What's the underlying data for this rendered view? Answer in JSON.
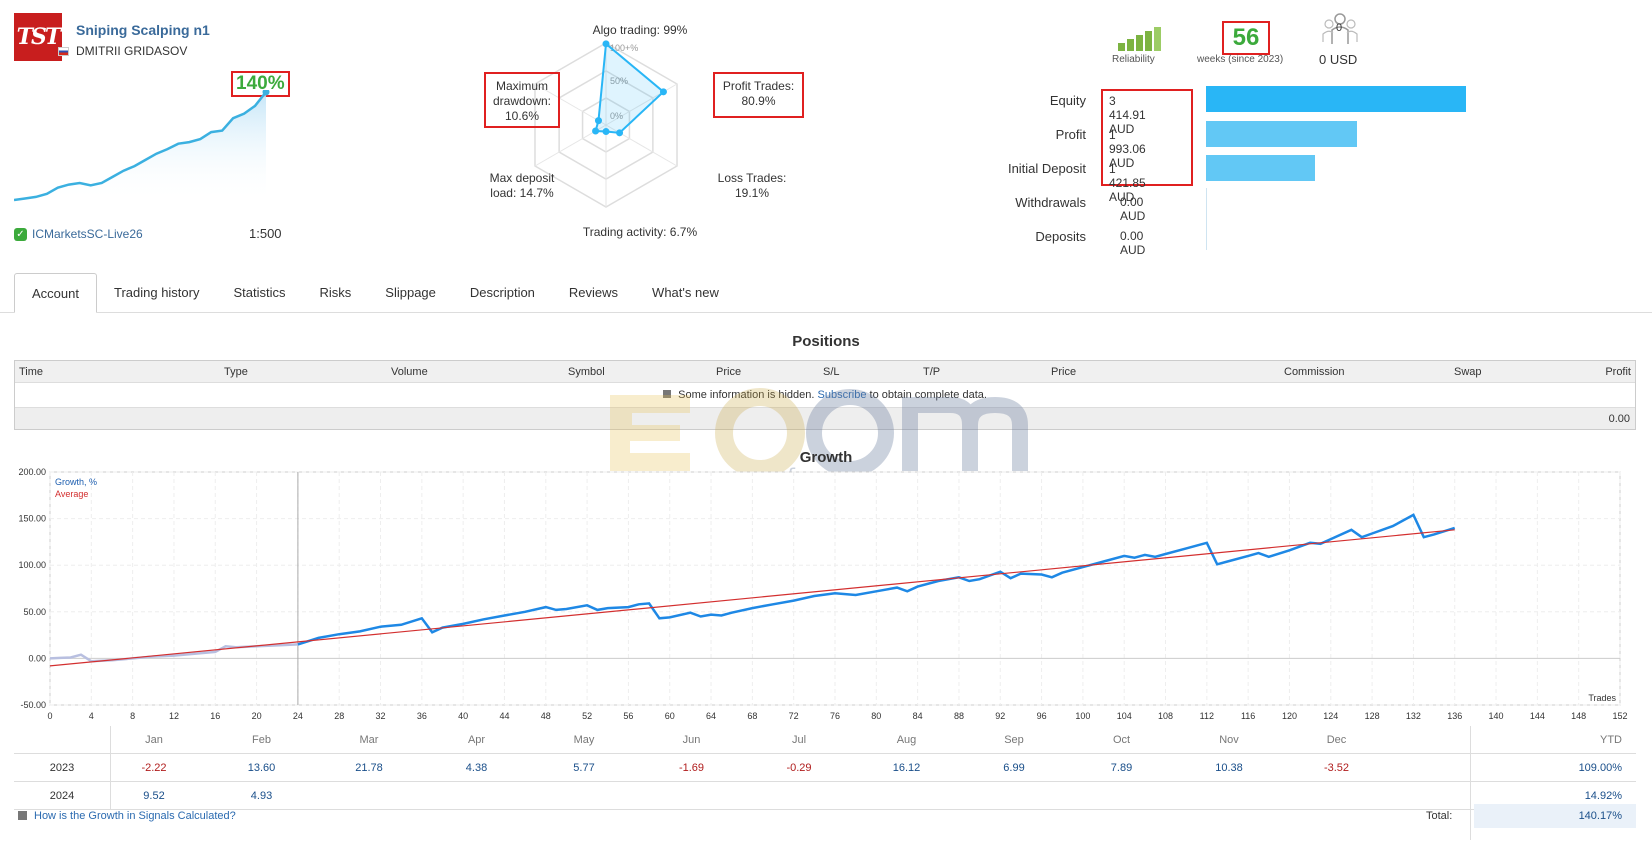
{
  "signal": {
    "logo_text": "TST",
    "title": "Sniping Scalping n1",
    "author": "DMITRII GRIDASOV",
    "growth_pct": "140%",
    "broker": "ICMarketsSC-Live26",
    "leverage": "1:500",
    "mini_growth": [
      0,
      2,
      4,
      8,
      16,
      20,
      22,
      19,
      22,
      30,
      38,
      44,
      52,
      60,
      66,
      73,
      75,
      79,
      88,
      90,
      106,
      112,
      122,
      140
    ]
  },
  "radar": {
    "algo": "Algo trading: 99%",
    "profit_trades_label": "Profit Trades:",
    "profit_trades_value": "80.9%",
    "max_dd_label": "Maximum drawdown:",
    "max_dd_value": "10.6%",
    "loss_trades_label": "Loss Trades:",
    "loss_trades_value": "19.1%",
    "deposit_load_label": "Max deposit load: 14.7%",
    "activity": "Trading activity: 6.7%",
    "ring_labels": [
      "100+%",
      "50%",
      "0%"
    ],
    "values": {
      "algo": 99,
      "profit_trades": 80.9,
      "loss_trades": 19.1,
      "activity": 6.7,
      "deposit_load": 14.7,
      "max_dd": 10.6
    }
  },
  "stats": {
    "reliability_label": "Reliability",
    "weeks": "56",
    "weeks_label": "weeks (since 2023)",
    "subscribers": "0",
    "usd": "0 USD",
    "colors": {
      "equity": "#29b6f6",
      "profit": "#62c8f5",
      "deposit": "#62c8f5"
    },
    "rows": [
      {
        "label": "Equity",
        "value": "3 414.91 AUD",
        "fraction": 1.0
      },
      {
        "label": "Profit",
        "value": "1 993.06 AUD",
        "fraction": 0.58
      },
      {
        "label": "Initial Deposit",
        "value": "1 421.85 AUD",
        "fraction": 0.42
      },
      {
        "label": "Withdrawals",
        "value": "0.00 AUD",
        "fraction": 0
      },
      {
        "label": "Deposits",
        "value": "0.00 AUD",
        "fraction": 0
      }
    ]
  },
  "tabs": [
    "Account",
    "Trading history",
    "Statistics",
    "Risks",
    "Slippage",
    "Description",
    "Reviews",
    "What's new"
  ],
  "positions": {
    "title": "Positions",
    "columns": [
      "Time",
      "Type",
      "Volume",
      "Symbol",
      "Price",
      "S/L",
      "T/P",
      "Price",
      "Commission",
      "Swap",
      "Profit"
    ],
    "hidden_msg": "Some information is hidden.",
    "subscribe": "Subscribe",
    "hidden_msg_tail": "to obtain complete data.",
    "total_profit": "0.00"
  },
  "watermark": {
    "brand": "ECOM",
    "url": "ecomforex.com"
  },
  "chart_data": {
    "type": "line",
    "title": "Growth",
    "xlabel": "Trades",
    "ylabel": "",
    "legend": [
      "Growth, %",
      "Average"
    ],
    "colors": {
      "growth": "#1e88e5",
      "average": "#d32f2f",
      "pre": "#b8bfe0"
    },
    "xlim": [
      0,
      152
    ],
    "ylim": [
      -50,
      200
    ],
    "x_ticks": [
      0,
      4,
      8,
      12,
      16,
      20,
      24,
      28,
      32,
      36,
      40,
      44,
      48,
      52,
      56,
      60,
      64,
      68,
      72,
      76,
      80,
      84,
      88,
      92,
      96,
      100,
      104,
      108,
      112,
      116,
      120,
      124,
      128,
      132,
      136,
      140,
      144,
      148,
      152
    ],
    "y_ticks": [
      "200.00",
      "150.00",
      "100.00",
      "50.00",
      "0.00",
      "-50.00"
    ],
    "marker_x": 24,
    "pre_series": {
      "x": [
        0,
        1,
        2,
        3,
        4,
        6,
        8,
        10,
        12,
        14,
        16,
        17,
        18,
        20,
        22,
        24
      ],
      "y": [
        0,
        0.5,
        1,
        4,
        -3,
        -2,
        0,
        2,
        3,
        5,
        7,
        13,
        12,
        13,
        14,
        15
      ]
    },
    "growth_series": {
      "x": [
        24,
        26,
        28,
        30,
        32,
        34,
        36,
        37,
        38,
        40,
        42,
        44,
        46,
        48,
        49,
        50,
        52,
        53,
        54,
        56,
        57,
        58,
        59,
        60,
        62,
        63,
        64,
        65,
        66,
        68,
        70,
        72,
        74,
        76,
        78,
        80,
        82,
        83,
        84,
        86,
        88,
        89,
        90,
        92,
        93,
        94,
        96,
        97,
        98,
        100,
        102,
        104,
        105,
        106,
        107,
        108,
        110,
        112,
        113,
        114,
        116,
        117,
        118,
        120,
        122,
        123,
        124,
        126,
        127,
        128,
        130,
        132,
        133,
        134,
        136
      ],
      "y": [
        15,
        22,
        26,
        29,
        34,
        36,
        43,
        28,
        33,
        37,
        42,
        46,
        50,
        55,
        52,
        53,
        57,
        52,
        54,
        55,
        58,
        59,
        43,
        44,
        49,
        45,
        47,
        46,
        49,
        54,
        58,
        62,
        67,
        70,
        68,
        72,
        76,
        72,
        77,
        83,
        87,
        83,
        85,
        93,
        86,
        91,
        90,
        87,
        92,
        98,
        104,
        110,
        108,
        111,
        109,
        112,
        118,
        124,
        101,
        104,
        110,
        113,
        109,
        116,
        124,
        123,
        128,
        138,
        130,
        134,
        142,
        154,
        130,
        133,
        140
      ]
    },
    "average_series": {
      "x": [
        0,
        136
      ],
      "y": [
        -8,
        138
      ]
    }
  },
  "monthly": {
    "months": [
      "Jan",
      "Feb",
      "Mar",
      "Apr",
      "May",
      "Jun",
      "Jul",
      "Aug",
      "Sep",
      "Oct",
      "Nov",
      "Dec"
    ],
    "ytd_label": "YTD",
    "rows": [
      {
        "year": "2023",
        "values": [
          "-2.22",
          "13.60",
          "21.78",
          "4.38",
          "5.77",
          "-1.69",
          "-0.29",
          "16.12",
          "6.99",
          "7.89",
          "10.38",
          "-3.52"
        ],
        "ytd": "109.00%"
      },
      {
        "year": "2024",
        "values": [
          "9.52",
          "4.93",
          "",
          "",
          "",
          "",
          "",
          "",
          "",
          "",
          "",
          ""
        ],
        "ytd": "14.92%"
      }
    ],
    "footer_link": "How is the Growth in Signals Calculated?",
    "total_label": "Total:",
    "total_value": "140.17%"
  }
}
